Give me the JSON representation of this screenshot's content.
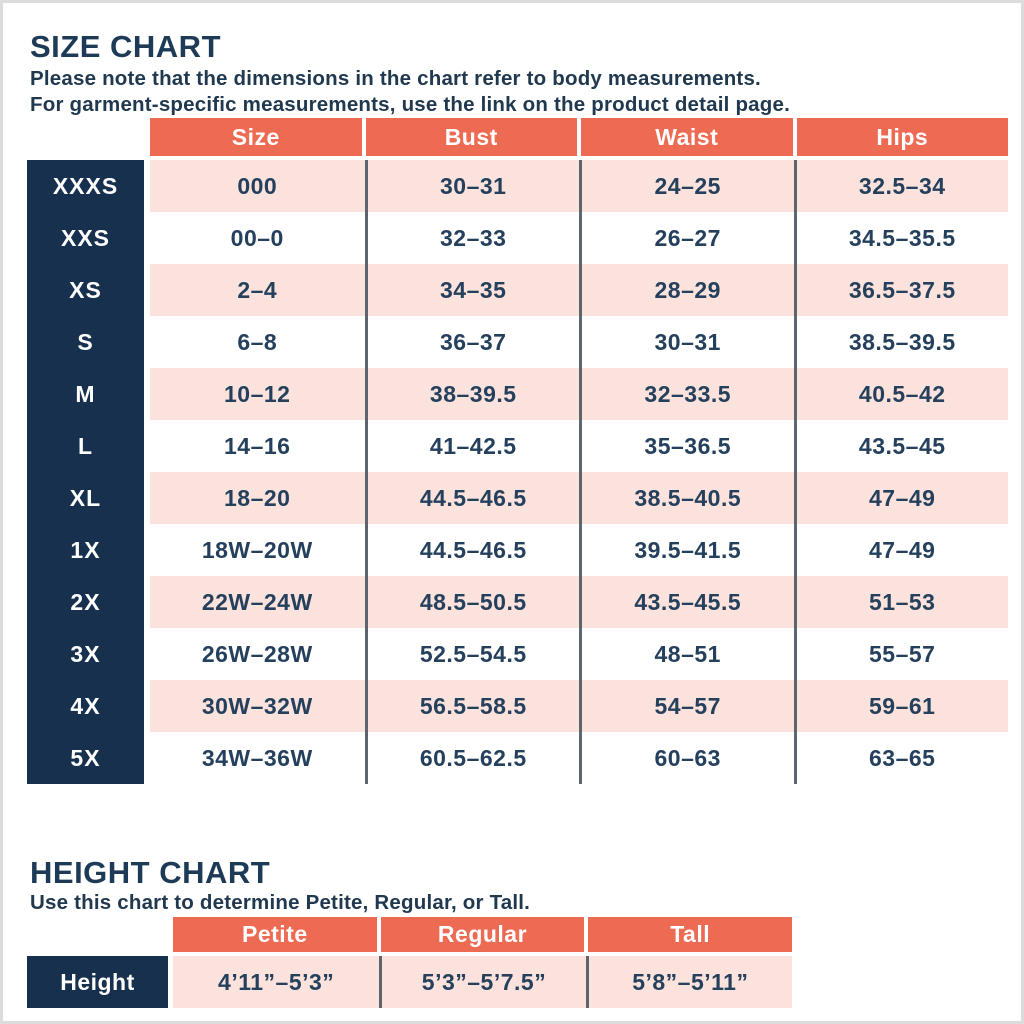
{
  "colors": {
    "header_coral": "#ee6b53",
    "label_navy": "#16304e",
    "row_pink": "#fbe2dc",
    "text_navy": "#25405c",
    "divider_gray": "#5d6470"
  },
  "size_chart": {
    "title": "SIZE CHART",
    "subtitle_line1": "Please note that the dimensions in the chart refer to body measurements.",
    "subtitle_line2": "For garment-specific measurements, use the link on the product detail page.",
    "columns": [
      "Size",
      "Bust",
      "Waist",
      "Hips"
    ],
    "rows": [
      {
        "label": "XXXS",
        "size": "000",
        "bust": "30–31",
        "waist": "24–25",
        "hips": "32.5–34"
      },
      {
        "label": "XXS",
        "size": "00–0",
        "bust": "32–33",
        "waist": "26–27",
        "hips": "34.5–35.5"
      },
      {
        "label": "XS",
        "size": "2–4",
        "bust": "34–35",
        "waist": "28–29",
        "hips": "36.5–37.5"
      },
      {
        "label": "S",
        "size": "6–8",
        "bust": "36–37",
        "waist": "30–31",
        "hips": "38.5–39.5"
      },
      {
        "label": "M",
        "size": "10–12",
        "bust": "38–39.5",
        "waist": "32–33.5",
        "hips": "40.5–42"
      },
      {
        "label": "L",
        "size": "14–16",
        "bust": "41–42.5",
        "waist": "35–36.5",
        "hips": "43.5–45"
      },
      {
        "label": "XL",
        "size": "18–20",
        "bust": "44.5–46.5",
        "waist": "38.5–40.5",
        "hips": "47–49"
      },
      {
        "label": "1X",
        "size": "18W–20W",
        "bust": "44.5–46.5",
        "waist": "39.5–41.5",
        "hips": "47–49"
      },
      {
        "label": "2X",
        "size": "22W–24W",
        "bust": "48.5–50.5",
        "waist": "43.5–45.5",
        "hips": "51–53"
      },
      {
        "label": "3X",
        "size": "26W–28W",
        "bust": "52.5–54.5",
        "waist": "48–51",
        "hips": "55–57"
      },
      {
        "label": "4X",
        "size": "30W–32W",
        "bust": "56.5–58.5",
        "waist": "54–57",
        "hips": "59–61"
      },
      {
        "label": "5X",
        "size": "34W–36W",
        "bust": "60.5–62.5",
        "waist": "60–63",
        "hips": "63–65"
      }
    ]
  },
  "height_chart": {
    "title": "HEIGHT CHART",
    "subtitle": "Use this chart to determine Petite, Regular, or Tall.",
    "columns": [
      "Petite",
      "Regular",
      "Tall"
    ],
    "row_label": "Height",
    "values": [
      "4’11”–5’3”",
      "5’3”–5’7.5”",
      "5’8”–5’11”"
    ]
  }
}
